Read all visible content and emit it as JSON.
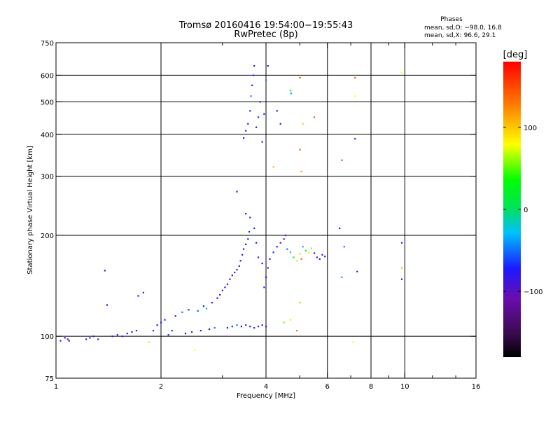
{
  "chart_data": {
    "type": "scatter",
    "title_line1": "Tromsø 20160416 19:54:00−19:55:43",
    "title_line2": "RwPretec (8p)",
    "xlabel": "Frequency [MHz]",
    "ylabel": "Stationary phase Virtual Height [km]",
    "x_scale": "log2",
    "y_scale": "log",
    "xlim": [
      1,
      16
    ],
    "ylim": [
      75,
      750
    ],
    "xticks": [
      1,
      2,
      4,
      6,
      8,
      10,
      16
    ],
    "xtick_labels": [
      "1",
      "2",
      "4",
      "6",
      "8",
      "10",
      "16"
    ],
    "x_minor_ticks": [
      3,
      5,
      7,
      9,
      12,
      14
    ],
    "yticks": [
      75,
      100,
      200,
      300,
      400,
      500,
      600,
      750
    ],
    "ytick_labels": [
      "75",
      "100",
      "200",
      "300",
      "400",
      "500",
      "600",
      "750"
    ],
    "x_gridlines": [
      2,
      4,
      6,
      8,
      10
    ],
    "y_gridlines": [
      100,
      200,
      300,
      400,
      500,
      600
    ],
    "grid": true,
    "legend": {
      "title": "Phases",
      "lines": [
        "mean, sd,O: −98.0, 16.8",
        "mean, sd,X:  96.6, 29.1"
      ],
      "placement": "top-right"
    },
    "colorbar": {
      "label": "[deg]",
      "range": [
        -180,
        180
      ],
      "ticks": [
        100,
        0,
        -100
      ],
      "tick_labels": [
        "100",
        "0",
        "−100"
      ],
      "colormap": "rainbow (black–purple–blue–cyan–green–yellow–red)"
    },
    "points": [
      {
        "x": 1.03,
        "y": 97,
        "p": -100
      },
      {
        "x": 1.06,
        "y": 99,
        "p": -95
      },
      {
        "x": 1.08,
        "y": 98,
        "p": -110
      },
      {
        "x": 1.09,
        "y": 97,
        "p": -100
      },
      {
        "x": 1.22,
        "y": 98,
        "p": -105
      },
      {
        "x": 1.25,
        "y": 99,
        "p": -95
      },
      {
        "x": 1.28,
        "y": 100,
        "p": -100
      },
      {
        "x": 1.32,
        "y": 98,
        "p": -115
      },
      {
        "x": 1.38,
        "y": 157,
        "p": -110
      },
      {
        "x": 1.4,
        "y": 124,
        "p": -100
      },
      {
        "x": 1.45,
        "y": 100,
        "p": -95
      },
      {
        "x": 1.5,
        "y": 101,
        "p": -100
      },
      {
        "x": 1.55,
        "y": 100,
        "p": -110
      },
      {
        "x": 1.6,
        "y": 102,
        "p": -95
      },
      {
        "x": 1.65,
        "y": 103,
        "p": -100
      },
      {
        "x": 1.7,
        "y": 104,
        "p": -120
      },
      {
        "x": 1.72,
        "y": 132,
        "p": -100
      },
      {
        "x": 1.78,
        "y": 135,
        "p": -95
      },
      {
        "x": 1.85,
        "y": 96,
        "p": 70
      },
      {
        "x": 1.9,
        "y": 104,
        "p": -95
      },
      {
        "x": 1.95,
        "y": 108,
        "p": -100
      },
      {
        "x": 2.0,
        "y": 110,
        "p": -105
      },
      {
        "x": 2.05,
        "y": 112,
        "p": -100
      },
      {
        "x": 2.1,
        "y": 101,
        "p": -95
      },
      {
        "x": 2.15,
        "y": 104,
        "p": -100
      },
      {
        "x": 2.2,
        "y": 115,
        "p": -90
      },
      {
        "x": 2.3,
        "y": 118,
        "p": -60
      },
      {
        "x": 2.35,
        "y": 102,
        "p": -100
      },
      {
        "x": 2.4,
        "y": 120,
        "p": -95
      },
      {
        "x": 2.45,
        "y": 103,
        "p": -110
      },
      {
        "x": 2.5,
        "y": 91,
        "p": 80
      },
      {
        "x": 2.55,
        "y": 119,
        "p": -70
      },
      {
        "x": 2.6,
        "y": 104,
        "p": -100
      },
      {
        "x": 2.65,
        "y": 123,
        "p": -100
      },
      {
        "x": 2.7,
        "y": 121,
        "p": -40
      },
      {
        "x": 2.75,
        "y": 105,
        "p": -100
      },
      {
        "x": 2.8,
        "y": 126,
        "p": -95
      },
      {
        "x": 2.85,
        "y": 106,
        "p": -60
      },
      {
        "x": 2.9,
        "y": 130,
        "p": -100
      },
      {
        "x": 2.95,
        "y": 133,
        "p": -130
      },
      {
        "x": 3.0,
        "y": 137,
        "p": -100
      },
      {
        "x": 3.05,
        "y": 140,
        "p": -95
      },
      {
        "x": 3.1,
        "y": 143,
        "p": -110
      },
      {
        "x": 3.15,
        "y": 148,
        "p": -100
      },
      {
        "x": 3.2,
        "y": 152,
        "p": -130
      },
      {
        "x": 3.25,
        "y": 155,
        "p": -100
      },
      {
        "x": 3.3,
        "y": 158,
        "p": -95
      },
      {
        "x": 3.35,
        "y": 162,
        "p": -110
      },
      {
        "x": 3.38,
        "y": 168,
        "p": -100
      },
      {
        "x": 3.42,
        "y": 175,
        "p": -95
      },
      {
        "x": 3.45,
        "y": 182,
        "p": -100
      },
      {
        "x": 3.5,
        "y": 188,
        "p": -105
      },
      {
        "x": 3.55,
        "y": 195,
        "p": -100
      },
      {
        "x": 3.58,
        "y": 205,
        "p": -95
      },
      {
        "x": 3.3,
        "y": 270,
        "p": -100
      },
      {
        "x": 3.5,
        "y": 232,
        "p": -110
      },
      {
        "x": 3.6,
        "y": 226,
        "p": -100
      },
      {
        "x": 3.7,
        "y": 210,
        "p": -95
      },
      {
        "x": 3.75,
        "y": 190,
        "p": -100
      },
      {
        "x": 3.8,
        "y": 172,
        "p": -110
      },
      {
        "x": 3.9,
        "y": 165,
        "p": -100
      },
      {
        "x": 3.95,
        "y": 140,
        "p": -95
      },
      {
        "x": 4.0,
        "y": 150,
        "p": -100
      },
      {
        "x": 4.05,
        "y": 160,
        "p": -105
      },
      {
        "x": 4.1,
        "y": 170,
        "p": -100
      },
      {
        "x": 4.2,
        "y": 178,
        "p": -95
      },
      {
        "x": 4.3,
        "y": 185,
        "p": -100
      },
      {
        "x": 4.4,
        "y": 190,
        "p": -110
      },
      {
        "x": 4.5,
        "y": 195,
        "p": -100
      },
      {
        "x": 4.55,
        "y": 200,
        "p": -95
      },
      {
        "x": 4.6,
        "y": 182,
        "p": -60
      },
      {
        "x": 4.7,
        "y": 178,
        "p": -10
      },
      {
        "x": 4.8,
        "y": 172,
        "p": 40
      },
      {
        "x": 4.9,
        "y": 168,
        "p": 70
      },
      {
        "x": 5.0,
        "y": 176,
        "p": 100
      },
      {
        "x": 5.05,
        "y": 170,
        "p": 140
      },
      {
        "x": 5.1,
        "y": 185,
        "p": -40
      },
      {
        "x": 5.2,
        "y": 180,
        "p": 20
      },
      {
        "x": 5.3,
        "y": 178,
        "p": 90
      },
      {
        "x": 5.4,
        "y": 183,
        "p": 60
      },
      {
        "x": 5.5,
        "y": 177,
        "p": -100
      },
      {
        "x": 5.6,
        "y": 172,
        "p": -95
      },
      {
        "x": 5.7,
        "y": 170,
        "p": -110
      },
      {
        "x": 5.8,
        "y": 175,
        "p": -100
      },
      {
        "x": 5.9,
        "y": 173,
        "p": -95
      },
      {
        "x": 3.1,
        "y": 106,
        "p": -100
      },
      {
        "x": 3.2,
        "y": 107,
        "p": -95
      },
      {
        "x": 3.3,
        "y": 108,
        "p": -60
      },
      {
        "x": 3.4,
        "y": 107,
        "p": -100
      },
      {
        "x": 3.5,
        "y": 108,
        "p": -110
      },
      {
        "x": 3.6,
        "y": 107,
        "p": -100
      },
      {
        "x": 3.7,
        "y": 106,
        "p": -95
      },
      {
        "x": 3.8,
        "y": 107,
        "p": -100
      },
      {
        "x": 3.9,
        "y": 108,
        "p": -105
      },
      {
        "x": 4.0,
        "y": 107,
        "p": -100
      },
      {
        "x": 4.5,
        "y": 110,
        "p": 60
      },
      {
        "x": 4.7,
        "y": 112,
        "p": 90
      },
      {
        "x": 4.9,
        "y": 104,
        "p": 140
      },
      {
        "x": 5.0,
        "y": 126,
        "p": 110
      },
      {
        "x": 3.45,
        "y": 390,
        "p": -100
      },
      {
        "x": 3.5,
        "y": 410,
        "p": -95
      },
      {
        "x": 3.55,
        "y": 430,
        "p": -110
      },
      {
        "x": 3.6,
        "y": 470,
        "p": -100
      },
      {
        "x": 3.62,
        "y": 520,
        "p": -60
      },
      {
        "x": 3.65,
        "y": 560,
        "p": -100
      },
      {
        "x": 3.68,
        "y": 600,
        "p": -95
      },
      {
        "x": 3.7,
        "y": 640,
        "p": -110
      },
      {
        "x": 3.75,
        "y": 420,
        "p": -100
      },
      {
        "x": 3.8,
        "y": 450,
        "p": -95
      },
      {
        "x": 3.85,
        "y": 500,
        "p": -100
      },
      {
        "x": 3.9,
        "y": 380,
        "p": -110
      },
      {
        "x": 3.95,
        "y": 460,
        "p": -100
      },
      {
        "x": 4.0,
        "y": 580,
        "p": -60
      },
      {
        "x": 4.05,
        "y": 640,
        "p": -100
      },
      {
        "x": 4.3,
        "y": 470,
        "p": -95
      },
      {
        "x": 4.4,
        "y": 430,
        "p": -100
      },
      {
        "x": 4.7,
        "y": 540,
        "p": 40
      },
      {
        "x": 4.72,
        "y": 530,
        "p": -40
      },
      {
        "x": 5.0,
        "y": 590,
        "p": 150
      },
      {
        "x": 5.0,
        "y": 360,
        "p": 140
      },
      {
        "x": 5.05,
        "y": 310,
        "p": 120
      },
      {
        "x": 5.1,
        "y": 430,
        "p": 100
      },
      {
        "x": 5.5,
        "y": 450,
        "p": 150
      },
      {
        "x": 6.6,
        "y": 335,
        "p": 150
      },
      {
        "x": 7.2,
        "y": 590,
        "p": 150
      },
      {
        "x": 7.2,
        "y": 520,
        "p": 80
      },
      {
        "x": 7.2,
        "y": 388,
        "p": -100
      },
      {
        "x": 9.8,
        "y": 610,
        "p": 80
      },
      {
        "x": 9.8,
        "y": 190,
        "p": -95
      },
      {
        "x": 9.8,
        "y": 160,
        "p": 110
      },
      {
        "x": 9.8,
        "y": 148,
        "p": -100
      },
      {
        "x": 6.5,
        "y": 210,
        "p": -100
      },
      {
        "x": 6.6,
        "y": 150,
        "p": -40
      },
      {
        "x": 6.7,
        "y": 185,
        "p": -60
      },
      {
        "x": 7.3,
        "y": 156,
        "p": -100
      },
      {
        "x": 7.1,
        "y": 96,
        "p": 80
      },
      {
        "x": 4.2,
        "y": 320,
        "p": 110
      }
    ]
  }
}
